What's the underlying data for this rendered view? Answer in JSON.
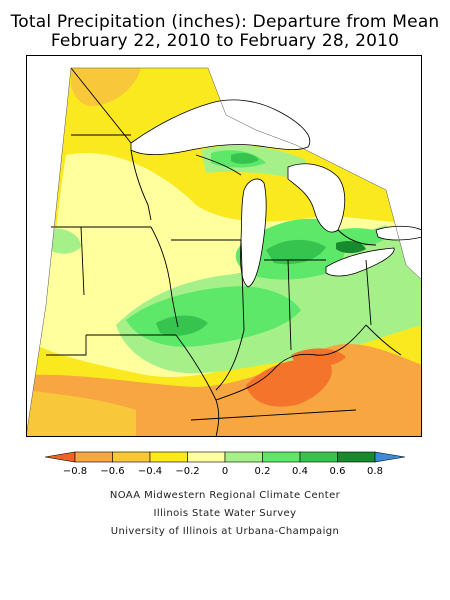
{
  "title": {
    "line1": "Total Precipitation (inches): Departure from Mean",
    "line2": "February 22, 2010 to February 28, 2010"
  },
  "legend": {
    "bins": [
      {
        "label": "-0.8",
        "color": "#f4742c"
      },
      {
        "label": "-0.6",
        "color": "#f7a642"
      },
      {
        "label": "-0.4",
        "color": "#f8c83a"
      },
      {
        "label": "-0.2",
        "color": "#fbe91f"
      },
      {
        "label": "0",
        "color": "#ffff9e"
      },
      {
        "label": "0.2",
        "color": "#a6f08a"
      },
      {
        "label": "0.4",
        "color": "#5ee86a"
      },
      {
        "label": "0.6",
        "color": "#36c44e"
      },
      {
        "label": "0.8",
        "color": "#178a2e"
      }
    ],
    "under_color": "#f0622a",
    "over_color": "#3d8ad8"
  },
  "credits": {
    "line1": "NOAA Midwestern Regional Climate Center",
    "line2": "Illinois State Water Survey",
    "line3": "University of Illinois at Urbana-Champaign"
  },
  "colors": {
    "lake": "#ffffff",
    "border": "#000000",
    "frame": "#000000"
  }
}
